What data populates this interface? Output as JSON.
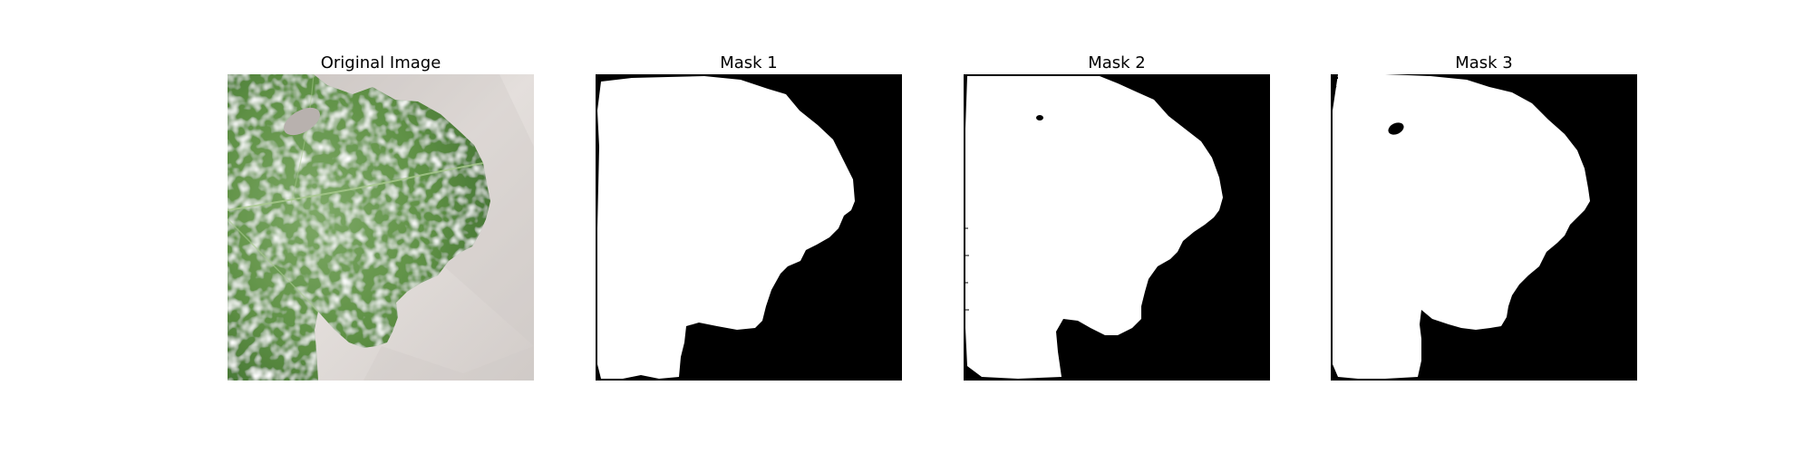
{
  "figure": {
    "panels": [
      {
        "title": "Original Image"
      },
      {
        "title": "Mask 1"
      },
      {
        "title": "Mask 2"
      },
      {
        "title": "Mask 3"
      }
    ],
    "colors": {
      "background": "#ffffff",
      "mask_foreground": "#ffffff",
      "mask_background": "#000000",
      "leaf_green": "#5e8f44",
      "paper_grey": "#d8d2cf"
    }
  }
}
